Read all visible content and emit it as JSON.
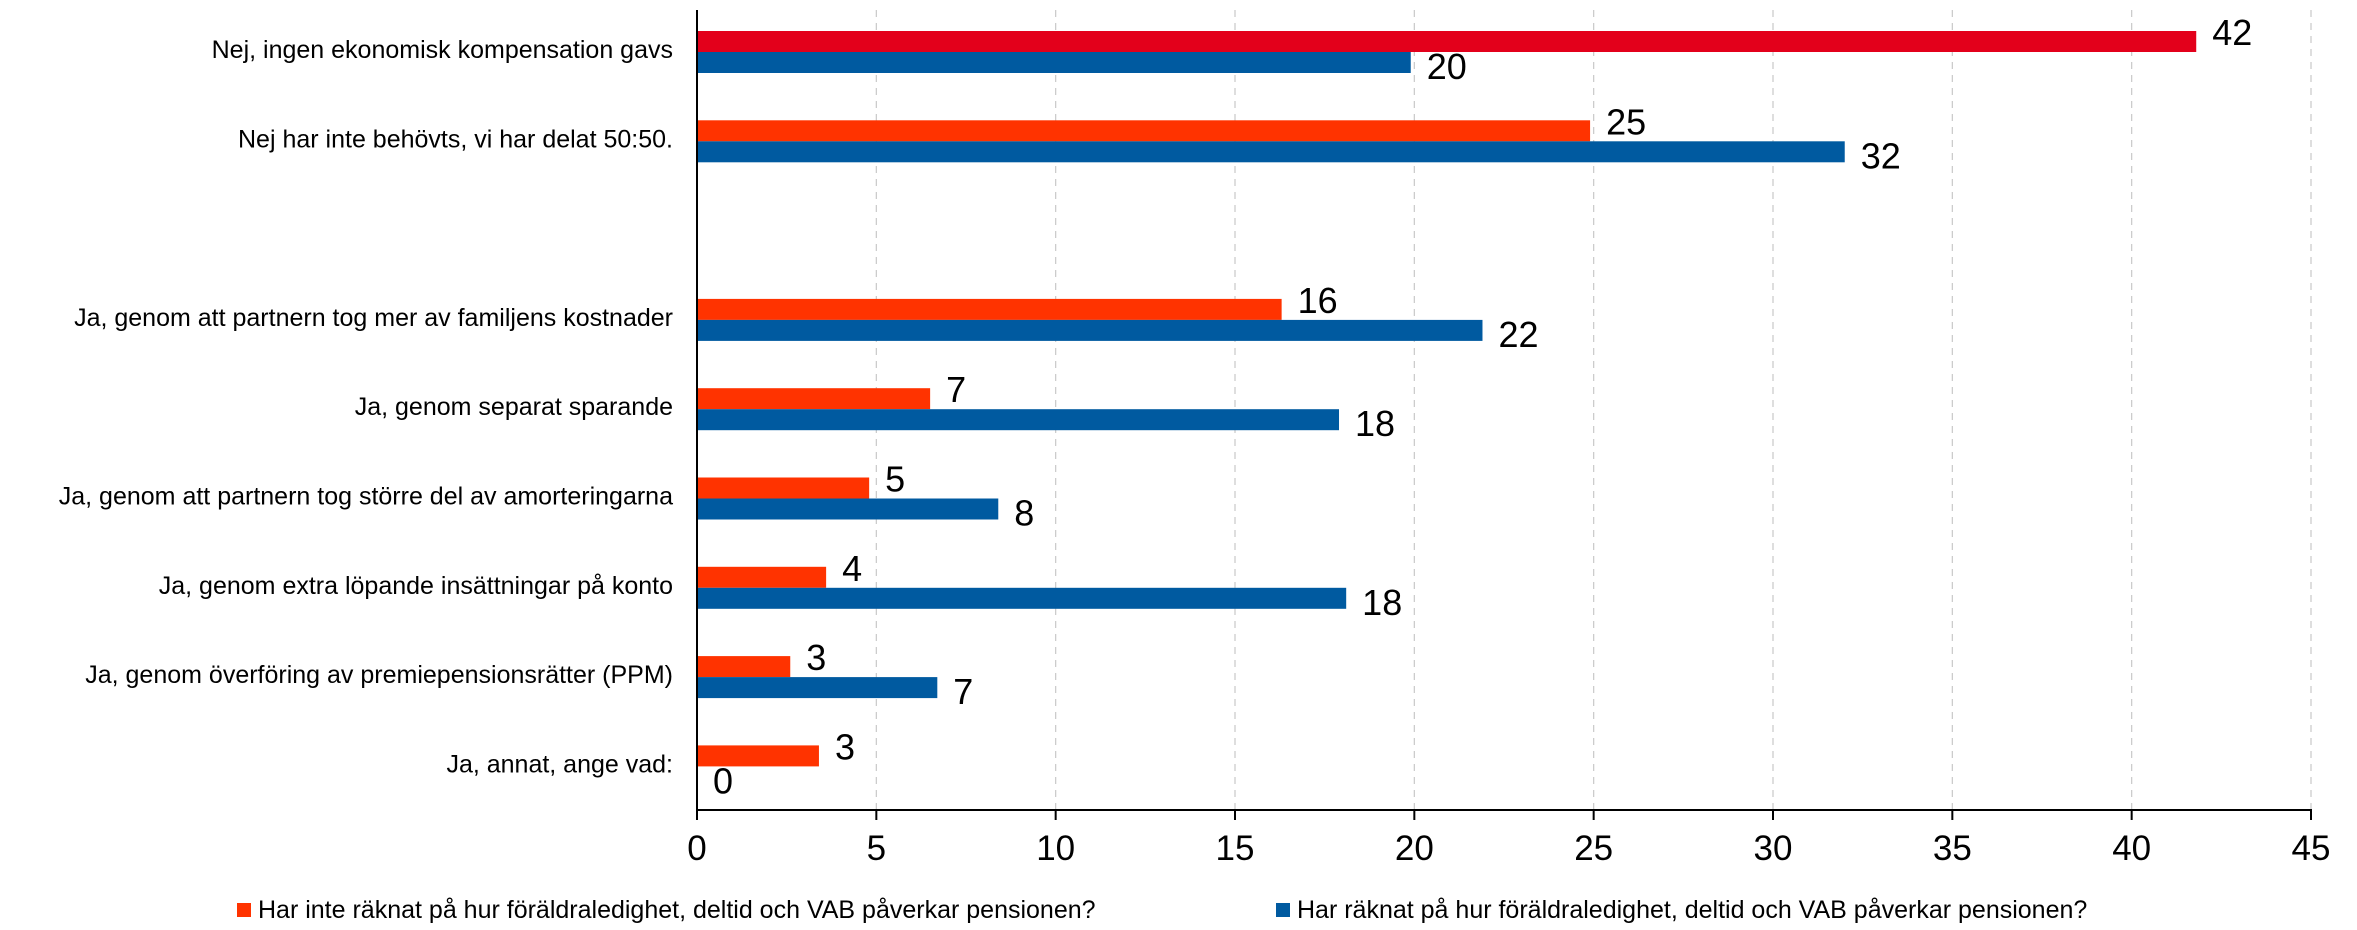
{
  "chart_data": {
    "type": "bar",
    "orientation": "horizontal",
    "categories": [
      "Nej, ingen ekonomisk kompensation gavs",
      "Nej har inte behövts, vi har delat 50:50.",
      "",
      "Ja, genom att partnern tog mer av familjens kostnader",
      "Ja, genom separat sparande",
      "Ja, genom att partnern tog större del av amorteringarna",
      "Ja, genom extra löpande insättningar på konto",
      "Ja, genom överföring av premiepensionsrätter (PPM)",
      "Ja, annat, ange vad:"
    ],
    "series": [
      {
        "name": "Har inte räknat på hur föräldraledighet, deltid och VAB påverkar pensionen?",
        "color": "#ff3300",
        "highlight_color": "#e3001b",
        "values": [
          42,
          25,
          null,
          16,
          7,
          5,
          4,
          3,
          3
        ],
        "bar_values": [
          41.8,
          24.9,
          null,
          16.3,
          6.5,
          4.8,
          3.6,
          2.6,
          3.4
        ],
        "labels": [
          "42",
          "25",
          "",
          "16",
          "7",
          "5",
          "4",
          "3",
          "3"
        ]
      },
      {
        "name": "Har räknat på hur föräldraledighet, deltid och VAB påverkar pensionen?",
        "color": "#005aa0",
        "values": [
          20,
          32,
          null,
          22,
          18,
          8,
          18,
          7,
          0
        ],
        "bar_values": [
          19.9,
          32.0,
          null,
          21.9,
          17.9,
          8.4,
          18.1,
          6.7,
          0
        ],
        "labels": [
          "20",
          "32",
          "",
          "22",
          "18",
          "8",
          "18",
          "7",
          "0"
        ]
      }
    ],
    "xlim": [
      0,
      45
    ],
    "xticks": [
      0,
      5,
      10,
      15,
      20,
      25,
      30,
      35,
      40,
      45
    ],
    "xtick_labels": [
      "0",
      "5",
      "10",
      "15",
      "20",
      "25",
      "30",
      "35",
      "40",
      "45"
    ],
    "grid": "vertical dashed",
    "legend_position": "bottom",
    "title": "",
    "xlabel": "",
    "ylabel": ""
  }
}
